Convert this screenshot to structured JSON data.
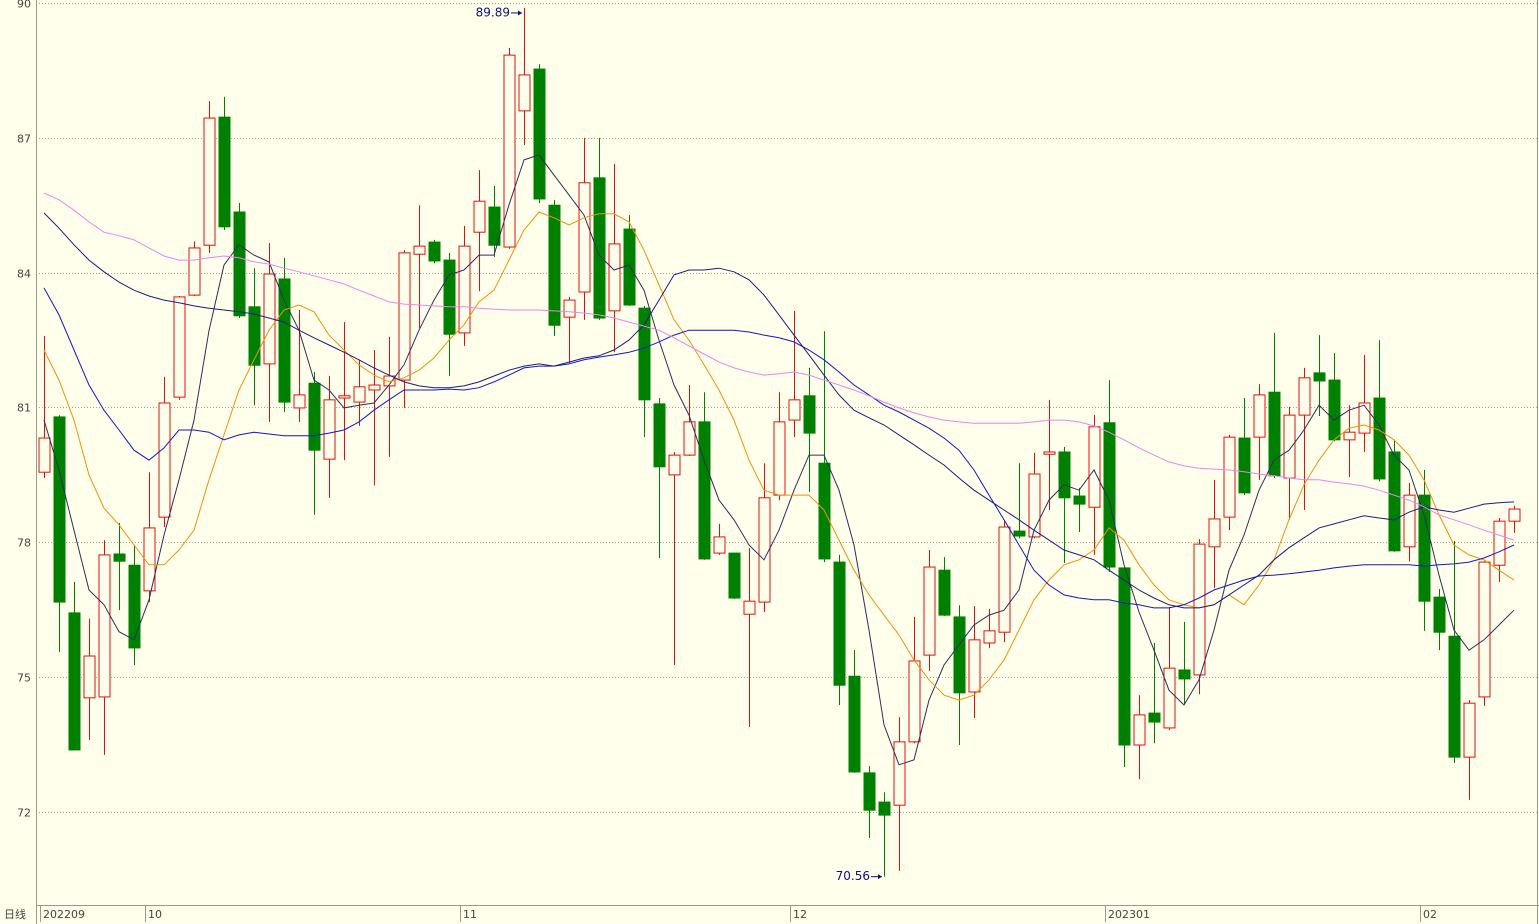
{
  "chart_data": {
    "type": "candlestick",
    "period_label": "日线",
    "categories": [
      "202209",
      null,
      null,
      null,
      null,
      null,
      null,
      "10",
      null,
      null,
      null,
      null,
      null,
      null,
      null,
      null,
      null,
      null,
      null,
      null,
      null,
      null,
      null,
      null,
      null,
      null,
      null,
      null,
      "11",
      null,
      null,
      null,
      null,
      null,
      null,
      null,
      null,
      null,
      null,
      null,
      null,
      null,
      null,
      null,
      null,
      null,
      null,
      null,
      null,
      null,
      "12",
      null,
      null,
      null,
      null,
      null,
      null,
      null,
      null,
      null,
      null,
      null,
      null,
      null,
      null,
      null,
      null,
      null,
      null,
      null,
      null,
      "202301",
      null,
      null,
      null,
      null,
      null,
      null,
      null,
      null,
      null,
      null,
      null,
      null,
      null,
      null,
      null,
      null,
      null,
      null,
      null,
      null,
      "02",
      null,
      null,
      null,
      null,
      null,
      null
    ],
    "open": [
      79.56,
      80.79,
      76.43,
      74.54,
      74.56,
      77.74,
      77.49,
      76.92,
      78.56,
      81.23,
      83.5,
      84.61,
      87.46,
      85.35,
      83.24,
      81.97,
      83.86,
      80.99,
      81.54,
      79.85,
      81.21,
      81.12,
      81.39,
      81.48,
      81.61,
      84.41,
      84.68,
      84.28,
      82.66,
      84.9,
      85.46,
      84.57,
      87.6,
      88.53,
      85.5,
      83.01,
      83.57,
      86.11,
      83.15,
      84.97,
      83.21,
      81.08,
      79.5,
      79.94,
      80.68,
      77.76,
      77.76,
      76.4,
      76.67,
      79.05,
      80.72,
      81.26,
      79.76,
      77.56,
      75.02,
      72.87,
      72.22,
      72.15,
      73.56,
      75.49,
      77.38,
      76.34,
      74.67,
      75.76,
      76.0,
      78.25,
      78.12,
      79.96,
      80.01,
      79.03,
      78.78,
      80.66,
      77.43,
      73.49,
      74.2,
      73.87,
      75.16,
      75.05,
      77.9,
      78.56,
      80.32,
      80.34,
      81.34,
      79.43,
      80.83,
      81.77,
      81.61,
      80.28,
      80.43,
      81.21,
      80.01,
      77.9,
      79.05,
      76.78,
      75.91,
      73.22,
      74.56,
      77.49,
      78.47
    ],
    "high": [
      82.59,
      80.83,
      77.12,
      76.3,
      78.05,
      78.43,
      77.94,
      79.56,
      81.68,
      83.48,
      84.7,
      87.82,
      87.91,
      85.55,
      84.1,
      84.66,
      84.33,
      83.17,
      81.79,
      81.7,
      82.9,
      82.06,
      82.28,
      82.57,
      84.5,
      85.5,
      84.73,
      84.44,
      85.04,
      86.28,
      85.93,
      89.0,
      89.89,
      88.64,
      85.62,
      83.46,
      87.0,
      87.0,
      86.42,
      85.28,
      83.26,
      81.21,
      80.01,
      81.5,
      81.34,
      78.41,
      77.76,
      77.87,
      79.76,
      81.34,
      83.15,
      81.88,
      82.7,
      77.72,
      75.6,
      73.02,
      72.44,
      74.11,
      76.34,
      77.83,
      77.67,
      76.6,
      76.58,
      76.52,
      78.47,
      79.76,
      79.99,
      81.17,
      80.12,
      79.21,
      80.83,
      81.61,
      77.43,
      74.6,
      75.76,
      76.56,
      76.23,
      78.07,
      79.39,
      80.39,
      81.21,
      81.52,
      82.66,
      81.01,
      81.88,
      82.61,
      82.21,
      81.05,
      82.17,
      82.5,
      80.28,
      79.32,
      79.61,
      76.96,
      78.03,
      74.49,
      77.58,
      78.54,
      78.81
    ],
    "low": [
      79.43,
      75.56,
      73.38,
      73.6,
      73.27,
      76.49,
      75.27,
      76.67,
      78.34,
      81.17,
      83.48,
      84.44,
      84.95,
      82.99,
      81.05,
      80.68,
      80.9,
      80.68,
      78.61,
      78.99,
      79.83,
      80.59,
      79.27,
      79.9,
      80.99,
      82.77,
      84.21,
      81.7,
      82.37,
      83.59,
      84.35,
      84.53,
      86.84,
      85.55,
      82.59,
      81.99,
      82.95,
      82.95,
      82.23,
      83.26,
      80.34,
      77.65,
      75.27,
      79.92,
      77.61,
      77.72,
      76.74,
      73.89,
      76.45,
      78.94,
      80.34,
      79.12,
      77.56,
      74.38,
      72.87,
      71.42,
      70.56,
      70.69,
      73.53,
      75.14,
      76.36,
      73.49,
      74.09,
      75.65,
      75.78,
      78.09,
      78.09,
      78.72,
      77.54,
      78.23,
      77.72,
      77.34,
      73.0,
      72.73,
      73.53,
      73.82,
      74.4,
      74.62,
      76.98,
      78.27,
      79.05,
      79.39,
      79.43,
      78.5,
      78.72,
      80.81,
      80.25,
      79.45,
      80.01,
      79.36,
      77.79,
      77.58,
      76.03,
      75.6,
      73.09,
      72.27,
      74.36,
      77.12,
      78.21
    ],
    "close": [
      80.32,
      76.67,
      73.38,
      75.47,
      77.72,
      77.58,
      75.65,
      78.32,
      81.1,
      83.46,
      84.55,
      87.44,
      85.02,
      83.04,
      81.94,
      83.97,
      81.12,
      81.28,
      80.05,
      81.17,
      81.26,
      81.46,
      81.5,
      81.7,
      84.44,
      84.59,
      84.26,
      82.63,
      84.59,
      85.59,
      84.61,
      88.84,
      88.4,
      85.64,
      82.83,
      83.39,
      86.0,
      82.99,
      84.64,
      83.28,
      81.17,
      79.68,
      79.94,
      80.68,
      77.63,
      78.12,
      76.76,
      76.69,
      78.99,
      80.68,
      81.17,
      80.43,
      77.63,
      74.82,
      72.89,
      72.04,
      71.93,
      73.56,
      75.36,
      77.45,
      76.38,
      74.65,
      75.83,
      76.03,
      78.34,
      78.14,
      79.52,
      80.01,
      78.99,
      78.85,
      80.57,
      77.45,
      73.49,
      74.16,
      74.0,
      75.2,
      74.96,
      77.96,
      78.52,
      80.34,
      79.1,
      81.28,
      79.48,
      80.83,
      81.66,
      81.59,
      80.28,
      80.45,
      81.1,
      79.41,
      77.81,
      79.05,
      76.69,
      76.0,
      73.22,
      74.42,
      77.56,
      78.47,
      78.74
    ],
    "up_color": "#e01010",
    "down_color": "#008000",
    "series": [
      {
        "color": "#2d2d5e",
        "values": [
          80.72,
          79.61,
          78.27,
          76.94,
          76.61,
          76.01,
          75.83,
          76.72,
          78.16,
          79.39,
          80.72,
          82.71,
          84.17,
          84.62,
          84.39,
          84.24,
          83.39,
          82.72,
          81.61,
          81.39,
          80.99,
          81.05,
          81.1,
          81.5,
          81.95,
          82.72,
          83.39,
          83.95,
          84.06,
          84.39,
          84.39,
          85.51,
          86.51,
          86.62,
          86.17,
          85.73,
          85.28,
          84.39,
          84.06,
          84.17,
          83.61,
          82.5,
          81.5,
          80.83,
          79.83,
          78.94,
          78.5,
          77.94,
          77.61,
          78.27,
          79.16,
          79.94,
          79.94,
          79.16,
          77.94,
          76.05,
          73.94,
          73.05,
          73.16,
          74.49,
          75.27,
          75.72,
          76.16,
          76.38,
          76.49,
          76.94,
          78.27,
          78.94,
          79.28,
          79.16,
          79.61,
          78.94,
          77.5,
          76.45,
          75.6,
          74.71,
          74.38,
          74.94,
          76.05,
          77.38,
          78.16,
          79.16,
          79.83,
          80.05,
          80.5,
          81.05,
          80.72,
          80.94,
          81.05,
          80.61,
          79.94,
          79.61,
          78.61,
          77.27,
          76.05,
          75.6,
          75.83,
          76.16,
          76.49
        ]
      },
      {
        "color": "#f0900c",
        "values": [
          82.28,
          81.61,
          80.72,
          79.5,
          78.76,
          78.39,
          77.94,
          77.5,
          77.5,
          77.83,
          78.27,
          79.39,
          80.39,
          81.39,
          82.06,
          82.72,
          83.17,
          83.28,
          83.13,
          82.61,
          82.28,
          81.95,
          81.72,
          81.57,
          81.66,
          81.83,
          82.1,
          82.5,
          82.84,
          83.35,
          83.61,
          84.28,
          84.95,
          85.35,
          85.22,
          85.06,
          85.22,
          85.31,
          85.31,
          85.13,
          84.5,
          83.73,
          82.95,
          82.5,
          81.95,
          81.39,
          80.72,
          79.83,
          79.16,
          79.05,
          79.05,
          79.05,
          78.72,
          78.05,
          77.38,
          76.83,
          76.38,
          75.94,
          75.38,
          74.94,
          74.6,
          74.49,
          74.6,
          74.94,
          75.38,
          76.05,
          76.72,
          77.16,
          77.5,
          77.61,
          77.83,
          78.32,
          78.05,
          77.5,
          77.05,
          76.72,
          76.61,
          76.54,
          76.61,
          76.83,
          76.61,
          77.05,
          77.61,
          78.5,
          79.28,
          79.83,
          80.28,
          80.54,
          80.61,
          80.5,
          80.28,
          79.94,
          79.39,
          78.61,
          77.94,
          77.72,
          77.61,
          77.38,
          77.16
        ]
      },
      {
        "color": "#1515c8",
        "values": [
          83.66,
          83.06,
          82.28,
          81.5,
          80.94,
          80.5,
          80.05,
          79.83,
          80.1,
          80.5,
          80.5,
          80.45,
          80.28,
          80.39,
          80.45,
          80.41,
          80.37,
          80.37,
          80.37,
          80.43,
          80.5,
          80.68,
          80.94,
          81.17,
          81.39,
          81.39,
          81.39,
          81.41,
          81.39,
          81.44,
          81.57,
          81.72,
          81.88,
          81.92,
          81.92,
          81.97,
          82.06,
          82.12,
          82.17,
          82.23,
          82.32,
          82.46,
          82.61,
          82.72,
          82.72,
          82.72,
          82.72,
          82.68,
          82.61,
          82.55,
          82.46,
          82.28,
          82.06,
          81.79,
          81.5,
          81.28,
          81.05,
          80.9,
          80.72,
          80.54,
          80.32,
          80.05,
          79.61,
          79.05,
          78.5,
          77.94,
          77.38,
          77.05,
          76.83,
          76.76,
          76.72,
          76.72,
          76.65,
          76.61,
          76.54,
          76.54,
          76.61,
          76.76,
          76.94,
          77.05,
          77.16,
          77.25,
          77.27,
          77.3,
          77.34,
          77.38,
          77.43,
          77.47,
          77.5,
          77.5,
          77.5,
          77.5,
          77.47,
          77.5,
          77.52,
          77.56,
          77.65,
          77.79,
          77.94
        ]
      },
      {
        "color": "#1c1c80",
        "values": [
          85.33,
          84.99,
          84.62,
          84.28,
          84.02,
          83.79,
          83.61,
          83.48,
          83.39,
          83.33,
          83.26,
          83.21,
          83.17,
          83.13,
          83.08,
          82.99,
          82.9,
          82.72,
          82.55,
          82.39,
          82.23,
          82.06,
          81.88,
          81.72,
          81.57,
          81.48,
          81.44,
          81.44,
          81.48,
          81.57,
          81.7,
          81.83,
          81.92,
          81.97,
          81.92,
          82.01,
          82.1,
          82.15,
          82.28,
          82.5,
          82.84,
          83.39,
          83.95,
          84.06,
          84.06,
          84.1,
          84.02,
          83.84,
          83.5,
          83.06,
          82.61,
          82.17,
          81.72,
          81.28,
          80.94,
          80.77,
          80.61,
          80.39,
          80.17,
          79.94,
          79.72,
          79.43,
          79.16,
          78.94,
          78.72,
          78.5,
          78.27,
          78.05,
          77.83,
          77.72,
          77.61,
          77.38,
          77.16,
          76.94,
          76.76,
          76.61,
          76.54,
          76.54,
          76.61,
          76.83,
          77.05,
          77.27,
          77.61,
          77.88,
          78.1,
          78.32,
          78.41,
          78.5,
          78.59,
          78.54,
          78.5,
          78.67,
          78.79,
          78.72,
          78.67,
          78.76,
          78.85,
          78.88,
          78.9
        ]
      },
      {
        "color": "#ee82ee",
        "values": [
          85.77,
          85.62,
          85.39,
          85.13,
          84.9,
          84.82,
          84.73,
          84.55,
          84.37,
          84.28,
          84.28,
          84.33,
          84.37,
          84.33,
          84.24,
          84.19,
          84.1,
          84.02,
          83.93,
          83.84,
          83.75,
          83.61,
          83.48,
          83.35,
          83.3,
          83.28,
          83.26,
          83.24,
          83.24,
          83.21,
          83.19,
          83.17,
          83.17,
          83.17,
          83.15,
          83.13,
          83.1,
          83.06,
          82.99,
          82.9,
          82.81,
          82.72,
          82.55,
          82.37,
          82.19,
          82.01,
          81.88,
          81.79,
          81.72,
          81.75,
          81.79,
          81.72,
          81.61,
          81.5,
          81.39,
          81.26,
          81.12,
          80.99,
          80.88,
          80.79,
          80.72,
          80.68,
          80.65,
          80.65,
          80.65,
          80.65,
          80.68,
          80.72,
          80.72,
          80.68,
          80.59,
          80.45,
          80.28,
          80.1,
          79.94,
          79.79,
          79.7,
          79.65,
          79.63,
          79.61,
          79.57,
          79.52,
          79.48,
          79.43,
          79.39,
          79.39,
          79.34,
          79.3,
          79.25,
          79.16,
          79.05,
          78.94,
          78.79,
          78.61,
          78.5,
          78.39,
          78.27,
          78.16,
          78.05
        ]
      }
    ],
    "ylim": [
      69.93,
      90
    ],
    "yticks": [
      72,
      75,
      78,
      81,
      84,
      87,
      90
    ],
    "grid": true,
    "background": "#ffffeb"
  }
}
